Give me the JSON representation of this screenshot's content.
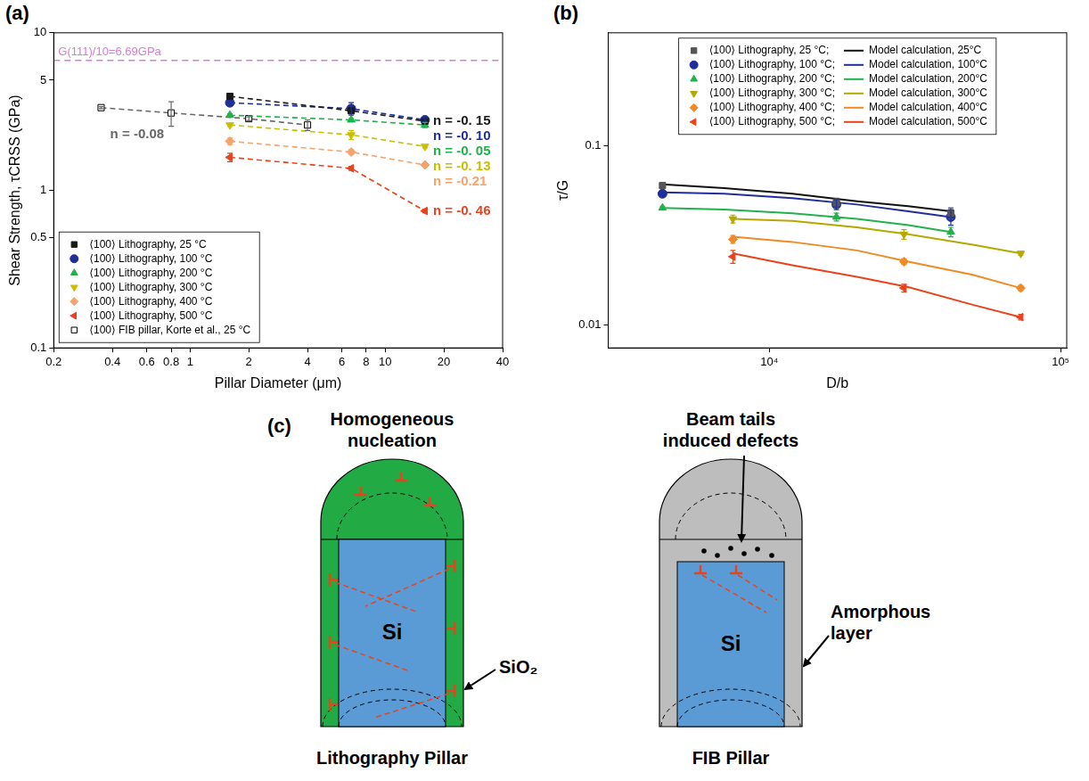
{
  "chart_data": [
    {
      "type": "scatter",
      "panel_label": "(a)",
      "x_label": "Pillar Diameter (μm)",
      "y_label": "Shear Strength, τCRSS (GPa)",
      "log": true,
      "grid": false,
      "legend": "lower left",
      "xlim": [
        0.2,
        40
      ],
      "xticks": [
        0.2,
        0.4,
        0.6,
        0.8,
        1,
        2,
        4,
        6,
        8,
        10,
        20,
        40
      ],
      "ylim": [
        0.1,
        10
      ],
      "yticks": [
        0.1,
        0.5,
        1,
        5,
        10
      ],
      "reference_line": {
        "label": "G(111)/10=6.69GPa",
        "value": 6.69,
        "color": "#d67bd6",
        "line_style": "dashed"
      },
      "series": [
        {
          "name": "⟨100⟩ Lithography, 25 °C",
          "color": "#1a1a1a",
          "marker": "square",
          "line_style": "dashed",
          "x": [
            1.6,
            6.7,
            16
          ],
          "values": [
            3.95,
            3.2,
            2.75
          ],
          "errors": [
            0.1,
            0.1,
            0.08
          ],
          "annotation": "n = -0. 15"
        },
        {
          "name": "⟨100⟩ Lithography, 100 °C",
          "color": "#1f2f9a",
          "marker": "circle",
          "line_style": "dashed",
          "x": [
            1.6,
            6.7,
            16
          ],
          "values": [
            3.6,
            3.3,
            2.8
          ],
          "errors": [
            0.08,
            0.3,
            0.06
          ],
          "annotation": "n = -0. 10"
        },
        {
          "name": "⟨100⟩ Lithography, 200 °C",
          "color": "#22b14c",
          "marker": "triangle",
          "line_style": "dashed",
          "x": [
            1.6,
            6.7,
            16
          ],
          "values": [
            3.0,
            2.8,
            2.6
          ],
          "errors": [
            0.06,
            0.05,
            0.1
          ],
          "annotation": "n = -0. 05"
        },
        {
          "name": "⟨100⟩ Lithography, 300 °C",
          "color": "#c9bf00",
          "marker": "triangle_down",
          "line_style": "dashed",
          "x": [
            1.6,
            6.7,
            16
          ],
          "values": [
            2.6,
            2.25,
            1.9
          ],
          "errors": [
            0.05,
            0.15,
            0.04
          ],
          "annotation": "n = -0. 13"
        },
        {
          "name": "⟨100⟩ Lithography, 400 °C",
          "color": "#f4a46a",
          "marker": "diamond",
          "line_style": "dashed",
          "x": [
            1.6,
            6.7,
            16
          ],
          "values": [
            2.05,
            1.75,
            1.45
          ],
          "errors": [
            0.1,
            0.06,
            0.04
          ],
          "annotation": "n = -0.21"
        },
        {
          "name": "⟨100⟩ Lithography, 500 °C",
          "color": "#e8431c",
          "marker": "triangle_left",
          "line_style": "dashed",
          "x": [
            1.6,
            6.7,
            16
          ],
          "values": [
            1.62,
            1.38,
            0.74
          ],
          "errors": [
            0.1,
            0.04,
            0.02
          ],
          "annotation": "n = -0. 46"
        },
        {
          "name": "⟨100⟩ FIB pillar, Korte et al., 25 °C",
          "color": "#666666",
          "marker": "square_open",
          "line_style": "dashed",
          "x": [
            0.35,
            0.8,
            2,
            4
          ],
          "values": [
            3.35,
            3.1,
            2.85,
            2.6
          ],
          "errors": [
            0.05,
            0.55,
            0.08,
            0.2
          ],
          "annotation": "n = -0.08"
        }
      ]
    },
    {
      "type": "scatter",
      "panel_label": "(b)",
      "x_label": "D/b",
      "y_label": "τ/G",
      "log": true,
      "grid": false,
      "legend": "upper center",
      "xlim": [
        2800,
        105000
      ],
      "xticks": [
        {
          "value": 10000,
          "label": "10⁴"
        },
        {
          "value": 100000,
          "label": "10⁵"
        }
      ],
      "ylim": [
        0.0074,
        0.43
      ],
      "yticks": [
        0.01,
        0.1
      ],
      "series": [
        {
          "name": "⟨100⟩ Lithography, 25 °C;",
          "type": "scatter",
          "color": "#555555",
          "marker": "square",
          "line_style": "none",
          "x": [
            4300,
            17000,
            42000
          ],
          "values": [
            0.06,
            0.048,
            0.042
          ],
          "errors": [
            0.002,
            0.003,
            0.003
          ]
        },
        {
          "name": "⟨100⟩ Lithography, 100 °C;",
          "type": "scatter",
          "color": "#1f2f9a",
          "marker": "circle",
          "line_style": "none",
          "x": [
            4300,
            17000,
            42000
          ],
          "values": [
            0.054,
            0.047,
            0.04
          ],
          "errors": [
            0.002,
            0.003,
            0.004
          ]
        },
        {
          "name": "⟨100⟩ Lithography, 200 °C;",
          "type": "scatter",
          "color": "#22b14c",
          "marker": "triangle",
          "line_style": "none",
          "x": [
            4300,
            17000,
            42000
          ],
          "values": [
            0.045,
            0.04,
            0.033
          ],
          "errors": [
            0.001,
            0.002,
            0.002
          ]
        },
        {
          "name": "⟨100⟩ Lithography, 300 °C;",
          "type": "scatter",
          "color": "#b5a800",
          "marker": "triangle_down",
          "line_style": "none",
          "x": [
            7500,
            29000,
            73000
          ],
          "values": [
            0.039,
            0.032,
            0.025
          ],
          "errors": [
            0.002,
            0.002,
            0.0005
          ]
        },
        {
          "name": "⟨100⟩ Lithography, 400 °C;",
          "type": "scatter",
          "color": "#f08a24",
          "marker": "diamond",
          "line_style": "none",
          "x": [
            7500,
            29000,
            73000
          ],
          "values": [
            0.03,
            0.0225,
            0.016
          ],
          "errors": [
            0.0015,
            0.0008,
            0.0005
          ]
        },
        {
          "name": "⟨100⟩ Lithography, 500 °C;",
          "type": "scatter",
          "color": "#e8431c",
          "marker": "triangle_left",
          "line_style": "none",
          "x": [
            7500,
            29000,
            73000
          ],
          "values": [
            0.024,
            0.016,
            0.011
          ],
          "errors": [
            0.002,
            0.0008,
            0.0004
          ]
        },
        {
          "name": "Model calculation, 25°C",
          "type": "line",
          "color": "#111111",
          "marker": "none",
          "line_style": "solid",
          "x": [
            4300,
            7000,
            12000,
            20000,
            30000,
            42000
          ],
          "values": [
            0.061,
            0.058,
            0.054,
            0.049,
            0.046,
            0.043
          ]
        },
        {
          "name": "Model calculation, 100°C",
          "type": "line",
          "color": "#1f2f9a",
          "marker": "none",
          "line_style": "solid",
          "x": [
            4300,
            7000,
            12000,
            20000,
            30000,
            42000
          ],
          "values": [
            0.055,
            0.054,
            0.051,
            0.047,
            0.043,
            0.04
          ]
        },
        {
          "name": "Model calculation, 200°C",
          "type": "line",
          "color": "#22b14c",
          "marker": "none",
          "line_style": "solid",
          "x": [
            4300,
            7000,
            12000,
            20000,
            30000,
            42000
          ],
          "values": [
            0.045,
            0.044,
            0.042,
            0.039,
            0.036,
            0.033
          ]
        },
        {
          "name": "Model calculation, 300°C",
          "type": "line",
          "color": "#b5a800",
          "marker": "none",
          "line_style": "solid",
          "x": [
            7500,
            12000,
            20000,
            30000,
            50000,
            73000
          ],
          "values": [
            0.039,
            0.038,
            0.035,
            0.032,
            0.028,
            0.025
          ]
        },
        {
          "name": "Model calculation, 400°C",
          "type": "line",
          "color": "#f08a24",
          "marker": "none",
          "line_style": "solid",
          "x": [
            7500,
            12000,
            20000,
            30000,
            50000,
            73000
          ],
          "values": [
            0.031,
            0.029,
            0.026,
            0.0225,
            0.019,
            0.016
          ]
        },
        {
          "name": "Model calculation, 500°C",
          "type": "line",
          "color": "#e8431c",
          "marker": "none",
          "line_style": "solid",
          "x": [
            7500,
            12000,
            20000,
            30000,
            50000,
            73000
          ],
          "values": [
            0.025,
            0.0215,
            0.0185,
            0.0162,
            0.0129,
            0.011
          ]
        }
      ]
    }
  ],
  "diagram": {
    "panel_label": "(c)",
    "pillars": [
      {
        "title": "Homogeneous nucleation",
        "core_label": "Si",
        "shell_label": "SiO₂",
        "caption": "Lithography Pillar"
      },
      {
        "title": "Beam tails induced defects",
        "core_label": "Si",
        "shell_label": "Amorphous layer",
        "caption": "FIB Pillar"
      }
    ]
  }
}
